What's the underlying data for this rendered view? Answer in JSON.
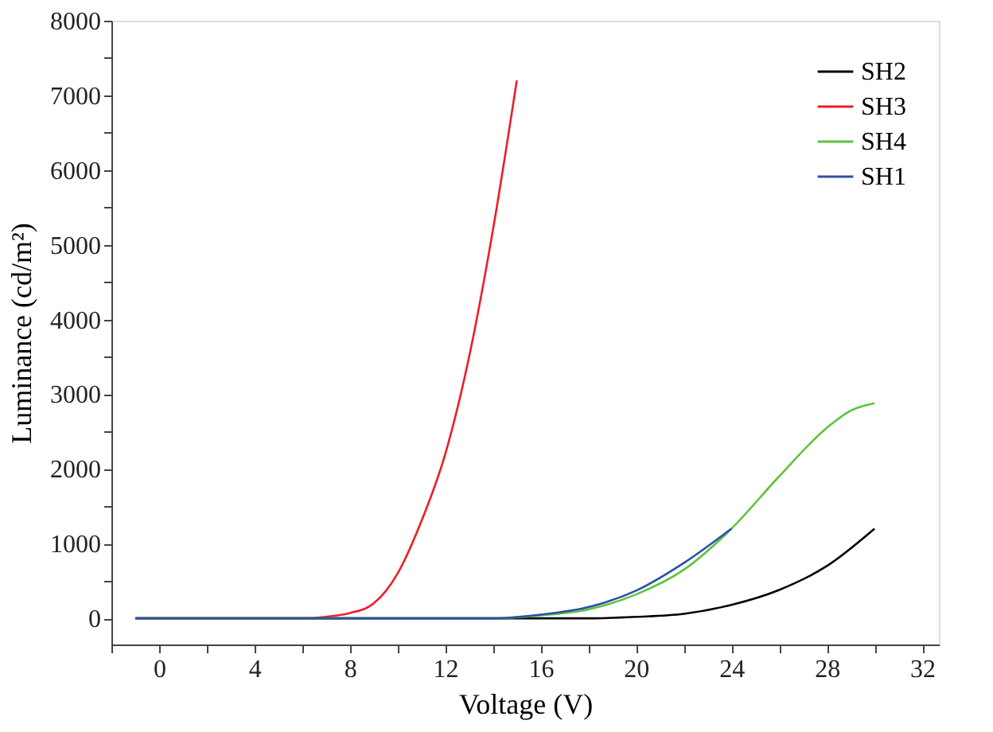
{
  "chart_data": {
    "type": "line",
    "xlabel": "Voltage (V)",
    "ylabel": "Luminance (cd/m²)",
    "xlim": [
      -2,
      32.7
    ],
    "ylim": [
      -350,
      8000
    ],
    "xticks": [
      {
        "value": -2,
        "label": null
      },
      0,
      {
        "value": 2,
        "label": null
      },
      4,
      {
        "value": 6,
        "label": null
      },
      8,
      {
        "value": 10,
        "label": null
      },
      12,
      {
        "value": 14,
        "label": null
      },
      16,
      {
        "value": 18,
        "label": null
      },
      20,
      {
        "value": 22,
        "label": null
      },
      24,
      {
        "value": 26,
        "label": null
      },
      28,
      {
        "value": 30,
        "label": null
      },
      32
    ],
    "yticks": [
      0,
      {
        "value": 500,
        "label": null
      },
      1000,
      {
        "value": 1500,
        "label": null
      },
      2000,
      {
        "value": 2500,
        "label": null
      },
      3000,
      {
        "value": 3500,
        "label": null
      },
      4000,
      {
        "value": 4500,
        "label": null
      },
      5000,
      {
        "value": 5500,
        "label": null
      },
      6000,
      {
        "value": 6500,
        "label": null
      },
      7000,
      {
        "value": 7500,
        "label": null
      },
      8000
    ],
    "grid": false,
    "legend": "top right",
    "marker": "none",
    "line_style": "solid",
    "series": [
      {
        "name": "SH2",
        "color": "#000000",
        "x": [
          -1,
          10,
          16,
          18,
          20,
          22,
          24,
          26,
          28,
          30
        ],
        "values": [
          0,
          0,
          0,
          0,
          20,
          60,
          180,
          380,
          700,
          1200
        ]
      },
      {
        "name": "SH3",
        "color": "#ee1c25",
        "x": [
          -1,
          6,
          7,
          8,
          9,
          10,
          11,
          12,
          13,
          14,
          15
        ],
        "values": [
          0,
          0,
          20,
          70,
          200,
          600,
          1300,
          2200,
          3500,
          5200,
          7200
        ]
      },
      {
        "name": "SH4",
        "color": "#5cc43b",
        "x": [
          -1,
          14,
          16,
          18,
          20,
          22,
          24,
          26,
          28,
          29,
          30
        ],
        "values": [
          0,
          0,
          40,
          120,
          320,
          650,
          1200,
          1900,
          2550,
          2780,
          2880
        ]
      },
      {
        "name": "SH1",
        "color": "#2e4fa8",
        "x": [
          -1,
          14,
          16,
          18,
          20,
          22,
          24
        ],
        "values": [
          0,
          0,
          50,
          150,
          370,
          740,
          1200
        ]
      }
    ]
  }
}
